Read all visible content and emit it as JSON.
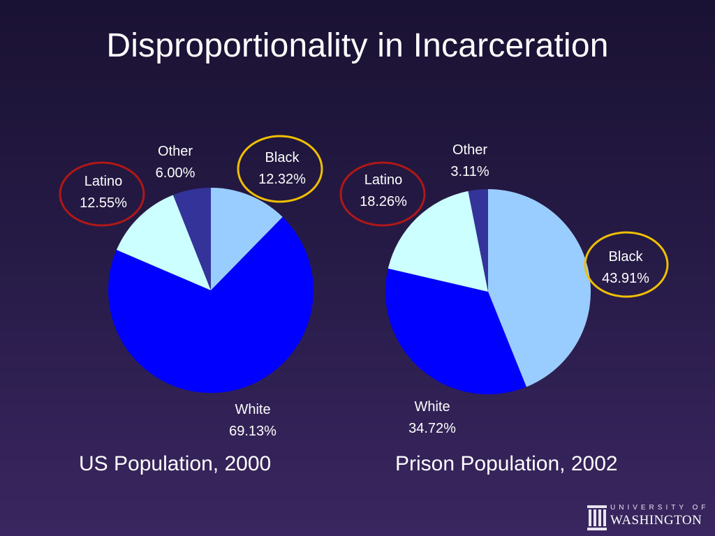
{
  "title": "Disproportionality in Incarceration",
  "chart_data": [
    {
      "type": "pie",
      "caption": "US Population, 2000",
      "slices": [
        {
          "label": "Black",
          "value": 12.32,
          "value_text": "12.32%",
          "color": "#99ccff",
          "highlight": "#f0c000"
        },
        {
          "label": "White",
          "value": 69.13,
          "value_text": "69.13%",
          "color": "#0000ff",
          "highlight": null
        },
        {
          "label": "Latino",
          "value": 12.55,
          "value_text": "12.55%",
          "color": "#ccffff",
          "highlight": "#b01818"
        },
        {
          "label": "Other",
          "value": 6.0,
          "value_text": "6.00%",
          "color": "#333399",
          "highlight": null
        }
      ]
    },
    {
      "type": "pie",
      "caption": "Prison Population, 2002",
      "slices": [
        {
          "label": "Black",
          "value": 43.91,
          "value_text": "43.91%",
          "color": "#99ccff",
          "highlight": "#f0c000"
        },
        {
          "label": "White",
          "value": 34.72,
          "value_text": "34.72%",
          "color": "#0000ff",
          "highlight": null
        },
        {
          "label": "Latino",
          "value": 18.26,
          "value_text": "18.26%",
          "color": "#ccffff",
          "highlight": "#b01818"
        },
        {
          "label": "Other",
          "value": 3.11,
          "value_text": "3.11%",
          "color": "#333399",
          "highlight": null
        }
      ]
    }
  ],
  "logo": {
    "line1": "UNIVERSITY OF",
    "line2": "WASHINGTON"
  }
}
